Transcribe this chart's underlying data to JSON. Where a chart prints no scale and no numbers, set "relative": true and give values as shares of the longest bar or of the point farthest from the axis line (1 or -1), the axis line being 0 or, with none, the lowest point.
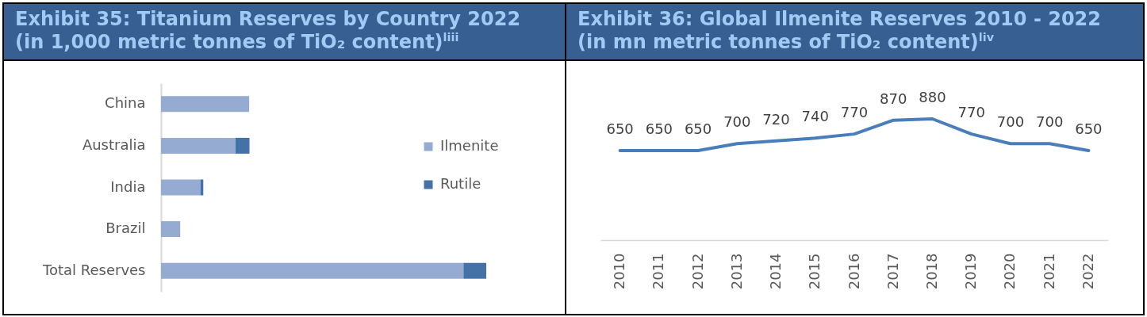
{
  "chart_data": [
    {
      "type": "bar",
      "title": "Exhibit 35: Titanium Reserves by Country 2022 (in 1,000 metric tonnes of TiO₂ content)$^{liii}$",
      "orientation": "horizontal",
      "stacked": true,
      "relative": true,
      "categories": [
        "China",
        "Australia",
        "India",
        "Brazil",
        "Total Reserves"
      ],
      "series": [
        {
          "name": "Ilmenite",
          "color": "#95abd1",
          "values": [
            0.271,
            0.229,
            0.121,
            0.059,
            0.93
          ]
        },
        {
          "name": "Rutile",
          "color": "#4472a7",
          "values": [
            null,
            0.043,
            0.009,
            null,
            0.07
          ]
        }
      ],
      "legend": "right"
    },
    {
      "type": "line",
      "title": "Exhibit 36: Global Ilmenite Reserves 2010 - 2022 (in mn metric tonnes of TiO₂ content)$^{liv}$",
      "categories": [
        "2010",
        "2011",
        "2012",
        "2013",
        "2014",
        "2015",
        "2016",
        "2017",
        "2018",
        "2019",
        "2020",
        "2021",
        "2022"
      ],
      "series": [
        {
          "color": "#4a7ebb",
          "values": [
            650,
            650,
            650,
            700,
            720,
            740,
            770,
            870,
            880,
            770,
            700,
            700,
            650
          ]
        }
      ],
      "data_labels": true,
      "tick_labels": "x"
    }
  ]
}
